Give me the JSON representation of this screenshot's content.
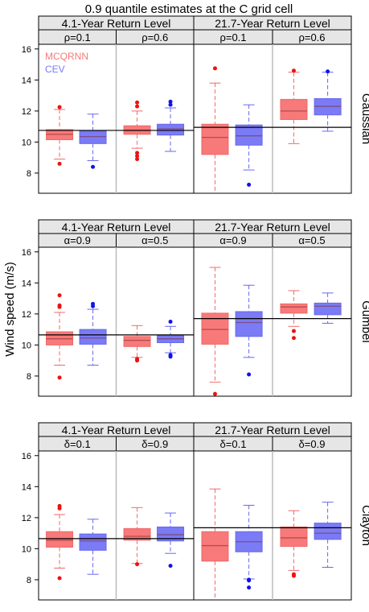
{
  "title": "0.9 quantile estimates at the C grid cell",
  "ylabel": "Wind speed (m/s)",
  "legend": {
    "items": [
      {
        "label": "MCQRNN",
        "color": "#f87979"
      },
      {
        "label": "CEV",
        "color": "#7b7bf5"
      }
    ]
  },
  "chart_data": [
    {
      "type": "box",
      "row_label": "Gaussian",
      "ylim": [
        6.7,
        16.3
      ],
      "yticks": [
        8,
        10,
        12,
        14,
        16
      ],
      "groups": [
        {
          "label": "4.1-Year Return Level",
          "reference": 10.75,
          "panels": [
            {
              "label": "ρ=0.1",
              "boxes": [
                {
                  "series": "MCQRNN",
                  "whisker_low": 8.9,
                  "q1": 10.15,
                  "median": 10.5,
                  "q3": 10.8,
                  "whisker_high": 12.1,
                  "outliers": [
                    12.25,
                    8.6
                  ]
                },
                {
                  "series": "CEV",
                  "whisker_low": 8.8,
                  "q1": 9.9,
                  "median": 10.35,
                  "q3": 10.7,
                  "whisker_high": 11.8,
                  "outliers": [
                    8.4
                  ]
                }
              ]
            },
            {
              "label": "ρ=0.6",
              "boxes": [
                {
                  "series": "MCQRNN",
                  "whisker_low": 9.6,
                  "q1": 10.5,
                  "median": 10.75,
                  "q3": 11.05,
                  "whisker_high": 12.0,
                  "outliers": [
                    12.55,
                    12.3,
                    9.3,
                    9.1,
                    8.9
                  ]
                },
                {
                  "series": "CEV",
                  "whisker_low": 9.4,
                  "q1": 10.45,
                  "median": 10.85,
                  "q3": 11.15,
                  "whisker_high": 12.2,
                  "outliers": [
                    12.6,
                    12.4
                  ]
                }
              ]
            }
          ]
        },
        {
          "label": "21.7-Year Return Level",
          "reference": 10.95,
          "panels": [
            {
              "label": "ρ=0.1",
              "boxes": [
                {
                  "series": "MCQRNN",
                  "whisker_low": 6.7,
                  "q1": 9.2,
                  "median": 10.3,
                  "q3": 11.15,
                  "whisker_high": 13.8,
                  "outliers": [
                    14.75
                  ]
                },
                {
                  "series": "CEV",
                  "whisker_low": 8.2,
                  "q1": 9.8,
                  "median": 10.4,
                  "q3": 11.1,
                  "whisker_high": 12.4,
                  "outliers": [
                    7.25
                  ]
                }
              ]
            },
            {
              "label": "ρ=0.6",
              "boxes": [
                {
                  "series": "MCQRNN",
                  "whisker_low": 9.9,
                  "q1": 11.45,
                  "median": 12.0,
                  "q3": 12.75,
                  "whisker_high": 14.5,
                  "outliers": [
                    14.6
                  ]
                },
                {
                  "series": "CEV",
                  "whisker_low": 10.7,
                  "q1": 11.75,
                  "median": 12.3,
                  "q3": 12.8,
                  "whisker_high": 14.5,
                  "outliers": [
                    14.55
                  ]
                }
              ]
            }
          ]
        }
      ]
    },
    {
      "type": "box",
      "row_label": "Gumbel",
      "ylim": [
        6.7,
        16.3
      ],
      "yticks": [
        8,
        10,
        12,
        14,
        16
      ],
      "groups": [
        {
          "label": "4.1-Year Return Level",
          "reference": 10.65,
          "panels": [
            {
              "label": "α=0.9",
              "boxes": [
                {
                  "series": "MCQRNN",
                  "whisker_low": 8.7,
                  "q1": 10.0,
                  "median": 10.4,
                  "q3": 10.85,
                  "whisker_high": 12.1,
                  "outliers": [
                    13.2,
                    12.55,
                    12.45,
                    7.9
                  ]
                },
                {
                  "series": "CEV",
                  "whisker_low": 8.7,
                  "q1": 10.05,
                  "median": 10.45,
                  "q3": 11.0,
                  "whisker_high": 12.3,
                  "outliers": [
                    12.65,
                    12.5
                  ]
                }
              ]
            },
            {
              "label": "α=0.5",
              "boxes": [
                {
                  "series": "MCQRNN",
                  "whisker_low": 9.2,
                  "q1": 9.9,
                  "median": 10.3,
                  "q3": 10.55,
                  "whisker_high": 11.25,
                  "outliers": [
                    9.1,
                    9.0
                  ]
                },
                {
                  "series": "CEV",
                  "whisker_low": 9.5,
                  "q1": 10.15,
                  "median": 10.4,
                  "q3": 10.6,
                  "whisker_high": 11.2,
                  "outliers": [
                    11.5,
                    9.35,
                    9.25
                  ]
                }
              ]
            }
          ]
        },
        {
          "label": "21.7-Year Return Level",
          "reference": 11.7,
          "panels": [
            {
              "label": "α=0.9",
              "boxes": [
                {
                  "series": "MCQRNN",
                  "whisker_low": 7.6,
                  "q1": 10.05,
                  "median": 11.0,
                  "q3": 12.05,
                  "whisker_high": 15.0,
                  "outliers": [
                    6.85
                  ]
                },
                {
                  "series": "CEV",
                  "whisker_low": 9.2,
                  "q1": 10.55,
                  "median": 11.45,
                  "q3": 12.15,
                  "whisker_high": 13.85,
                  "outliers": [
                    8.1
                  ]
                }
              ]
            },
            {
              "label": "α=0.5",
              "boxes": [
                {
                  "series": "MCQRNN",
                  "whisker_low": 11.2,
                  "q1": 12.05,
                  "median": 12.45,
                  "q3": 12.65,
                  "whisker_high": 13.5,
                  "outliers": [
                    10.9,
                    10.45
                  ]
                },
                {
                  "series": "CEV",
                  "whisker_low": 11.4,
                  "q1": 11.95,
                  "median": 12.5,
                  "q3": 12.7,
                  "whisker_high": 13.35,
                  "outliers": []
                }
              ]
            }
          ]
        }
      ]
    },
    {
      "type": "box",
      "row_label": "Clayton",
      "ylim": [
        6.7,
        16.3
      ],
      "yticks": [
        8,
        10,
        12,
        14,
        16
      ],
      "groups": [
        {
          "label": "4.1-Year Return Level",
          "reference": 10.65,
          "panels": [
            {
              "label": "δ=0.1",
              "boxes": [
                {
                  "series": "MCQRNN",
                  "whisker_low": 8.75,
                  "q1": 10.1,
                  "median": 10.55,
                  "q3": 11.1,
                  "whisker_high": 12.2,
                  "outliers": [
                    12.75,
                    12.6,
                    8.1
                  ]
                },
                {
                  "series": "CEV",
                  "whisker_low": 8.35,
                  "q1": 9.9,
                  "median": 10.5,
                  "q3": 10.95,
                  "whisker_high": 11.9,
                  "outliers": []
                }
              ]
            },
            {
              "label": "δ=0.9",
              "boxes": [
                {
                  "series": "MCQRNN",
                  "whisker_low": 9.05,
                  "q1": 10.55,
                  "median": 10.8,
                  "q3": 11.3,
                  "whisker_high": 12.65,
                  "outliers": [
                    9.0
                  ]
                },
                {
                  "series": "CEV",
                  "whisker_low": 9.7,
                  "q1": 10.5,
                  "median": 10.9,
                  "q3": 11.4,
                  "whisker_high": 12.3,
                  "outliers": [
                    8.9
                  ]
                }
              ]
            }
          ]
        },
        {
          "label": "21.7-Year Return Level",
          "reference": 11.35,
          "panels": [
            {
              "label": "δ=0.1",
              "boxes": [
                {
                  "series": "MCQRNN",
                  "whisker_low": 6.7,
                  "q1": 9.2,
                  "median": 10.2,
                  "q3": 11.1,
                  "whisker_high": 13.85,
                  "outliers": []
                },
                {
                  "series": "CEV",
                  "whisker_low": 8.05,
                  "q1": 9.8,
                  "median": 10.45,
                  "q3": 11.1,
                  "whisker_high": 12.8,
                  "outliers": [
                    8.0,
                    7.95,
                    7.5
                  ]
                }
              ]
            },
            {
              "label": "δ=0.9",
              "boxes": [
                {
                  "series": "MCQRNN",
                  "whisker_low": 8.6,
                  "q1": 10.15,
                  "median": 10.7,
                  "q3": 11.4,
                  "whisker_high": 12.45,
                  "outliers": [
                    8.35,
                    8.25
                  ]
                },
                {
                  "series": "CEV",
                  "whisker_low": 8.8,
                  "q1": 10.6,
                  "median": 11.0,
                  "q3": 11.65,
                  "whisker_high": 13.0,
                  "outliers": []
                }
              ]
            }
          ]
        }
      ]
    }
  ]
}
